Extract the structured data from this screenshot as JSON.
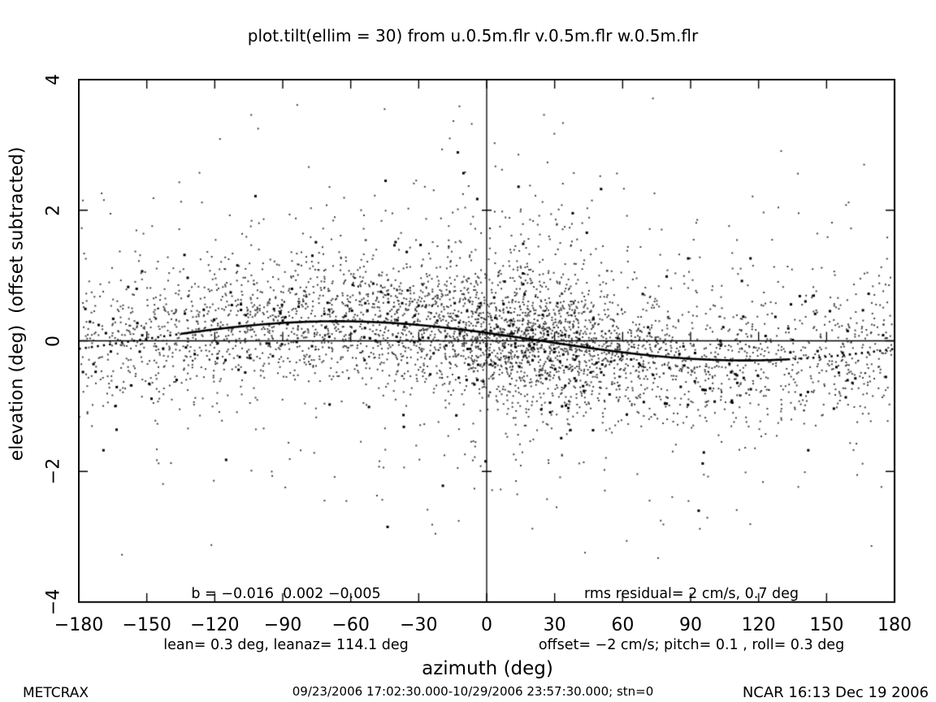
{
  "page": {
    "background": "#ffffff",
    "foreground": "#000000"
  },
  "header": {
    "title": "plot.tilt(ellim = 30) from u.0.5m.flr v.0.5m.flr w.0.5m.flr"
  },
  "annotations": {
    "coeff_line": "b = −0.016  0.002 −0.005",
    "lean_line": "lean= 0.3 deg, leanaz= 114.1 deg",
    "rms_line": "rms residual= 2 cm/s, 0.7 deg",
    "offset_line": "offset= −2 cm/s; pitch= 0.1 , roll= 0.3 deg"
  },
  "footer": {
    "project": "METCRAX",
    "time_range": "09/23/2006 17:02:30.000-10/29/2006 23:57:30.000; stn=0",
    "credit": "NCAR 16:13 Dec 19 2006"
  },
  "chart_data": {
    "type": "scatter",
    "title": "plot.tilt(ellim = 30) from u.0.5m.flr v.0.5m.flr w.0.5m.flr",
    "xlabel": "azimuth (deg)",
    "ylabel": "elevation (deg)  (offset subtracted)",
    "xlim": [
      -180,
      180
    ],
    "ylim": [
      -4,
      4
    ],
    "xticks": [
      -180,
      -150,
      -120,
      -90,
      -60,
      -30,
      0,
      30,
      60,
      90,
      120,
      150,
      180
    ],
    "yticks": [
      -4,
      -2,
      0,
      2,
      4
    ],
    "grid": false,
    "legend": "none",
    "reference_lines": {
      "vertical_at_x": 0,
      "horizontal_at_y": 0,
      "crossline_xtick_step_deg": 30,
      "crossline_ytick_values": [
        -2,
        2
      ]
    },
    "fit_stats": {
      "b": [
        -0.016,
        0.002,
        -0.005
      ],
      "lean_deg": 0.3,
      "leanaz_deg": 114.1,
      "rms_residual_cm_s": 2,
      "rms_residual_deg": 0.7,
      "offset_cm_s": -2,
      "pitch_deg": 0.1,
      "roll_deg": 0.3
    },
    "fit_curve": {
      "model": "elevation = -lean * cos(azimuth - leanaz)",
      "amplitude_deg": 0.3,
      "phase_deg": 114.1,
      "solid_range_deg": [
        -135,
        133
      ],
      "dotted_outside_solid_range": true,
      "zero_crossings_deg": [
        -155.9,
        24.1
      ],
      "max_at_deg": -65.9,
      "min_at_deg": 114.1
    },
    "scatter": {
      "n_points": 4600,
      "seed": 11,
      "marker_px": 2,
      "bold_fraction": 0.07,
      "x_mixture": [
        {
          "type": "uniform",
          "min": -179,
          "max": 179,
          "weight": 0.46
        },
        {
          "type": "normal",
          "mean": 25,
          "sd": 52,
          "weight": 0.26
        },
        {
          "type": "normal",
          "mean": 18,
          "sd": 16,
          "weight": 0.1
        },
        {
          "type": "normal",
          "mean": -60,
          "sd": 65,
          "weight": 0.18
        }
      ],
      "y_noise_mixture": [
        {
          "mean": 0.0,
          "sd": 0.48,
          "weight": 0.74
        },
        {
          "mean": 0.15,
          "sd": 1.05,
          "weight": 0.2
        },
        {
          "mean": 0.2,
          "sd": 1.75,
          "weight": 0.06
        }
      ],
      "y_clip": [
        -3.55,
        3.78
      ]
    },
    "colors": {
      "points": "#1a1a1a",
      "curve": "#000000",
      "axes": "#000000",
      "background": "#ffffff"
    }
  }
}
